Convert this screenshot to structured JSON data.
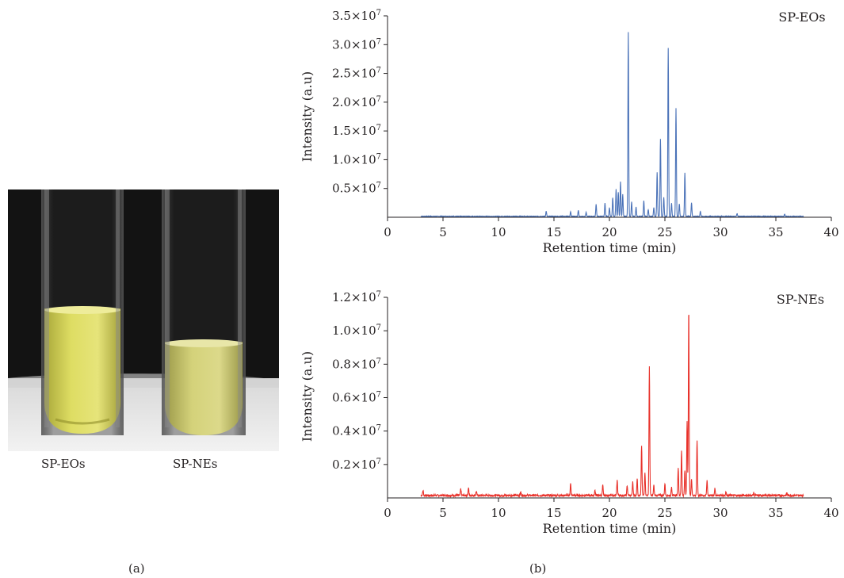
{
  "panel_a": {
    "tag": "(a)",
    "tube_labels": [
      "SP-EOs",
      "SP-NEs"
    ],
    "liquid_color": "#d6d65a",
    "background_color": "#141414"
  },
  "panel_b": {
    "tag": "(b)"
  },
  "chart_data": [
    {
      "type": "line",
      "series_label": "SP-EOs",
      "color": "#4a72b8",
      "xlabel": "Retention time (min)",
      "ylabel": "Intensity (a.u)",
      "xlim": [
        0,
        40
      ],
      "ylim": [
        0,
        35000000
      ],
      "xticks": [
        0,
        5,
        10,
        15,
        20,
        25,
        30,
        35,
        40
      ],
      "ytick_labels": [
        {
          "value": 5000000,
          "mant": "0.5×10",
          "exp": "7"
        },
        {
          "value": 10000000,
          "mant": "1.0×10",
          "exp": "7"
        },
        {
          "value": 15000000,
          "mant": "1.5×10",
          "exp": "7"
        },
        {
          "value": 20000000,
          "mant": "2.0×10",
          "exp": "7"
        },
        {
          "value": 25000000,
          "mant": "2.5×10",
          "exp": "7"
        },
        {
          "value": 30000000,
          "mant": "3.0×10",
          "exp": "7"
        },
        {
          "value": 35000000,
          "mant": "3.5×10",
          "exp": "7"
        }
      ],
      "x_range": [
        3,
        37.5
      ],
      "baseline": 150000,
      "peaks": [
        [
          14.3,
          900000
        ],
        [
          16.5,
          800000
        ],
        [
          17.2,
          1100000
        ],
        [
          17.9,
          700000
        ],
        [
          18.8,
          2100000
        ],
        [
          19.6,
          2300000
        ],
        [
          20.0,
          1500000
        ],
        [
          20.3,
          3300000
        ],
        [
          20.6,
          4700000
        ],
        [
          20.8,
          4200000
        ],
        [
          21.0,
          6000000
        ],
        [
          21.2,
          3800000
        ],
        [
          21.7,
          32000000
        ],
        [
          22.0,
          2500000
        ],
        [
          22.4,
          1600000
        ],
        [
          23.1,
          2700000
        ],
        [
          23.5,
          1200000
        ],
        [
          24.0,
          1500000
        ],
        [
          24.3,
          7700000
        ],
        [
          24.6,
          13500000
        ],
        [
          24.9,
          3300000
        ],
        [
          25.3,
          29300000
        ],
        [
          25.6,
          2300000
        ],
        [
          26.0,
          18800000
        ],
        [
          26.3,
          2200000
        ],
        [
          26.8,
          7600000
        ],
        [
          27.4,
          2400000
        ],
        [
          28.2,
          900000
        ],
        [
          31.5,
          500000
        ],
        [
          35.8,
          400000
        ]
      ]
    },
    {
      "type": "line",
      "series_label": "SP-NEs",
      "color": "#e8312a",
      "xlabel": "Retention time (min)",
      "ylabel": "Intensity (a.u)",
      "xlim": [
        0,
        40
      ],
      "ylim": [
        0,
        12000000
      ],
      "xticks": [
        0,
        5,
        10,
        15,
        20,
        25,
        30,
        35,
        40
      ],
      "ytick_labels": [
        {
          "value": 2000000,
          "mant": "0.2×10",
          "exp": "7"
        },
        {
          "value": 4000000,
          "mant": "0.4×10",
          "exp": "7"
        },
        {
          "value": 6000000,
          "mant": "0.6×10",
          "exp": "7"
        },
        {
          "value": 8000000,
          "mant": "0.8×10",
          "exp": "7"
        },
        {
          "value": 10000000,
          "mant": "1.0×10",
          "exp": "7"
        },
        {
          "value": 12000000,
          "mant": "1.2×10",
          "exp": "7"
        }
      ],
      "x_range": [
        3,
        37.5
      ],
      "baseline": 150000,
      "peaks": [
        [
          3.2,
          300000
        ],
        [
          6.6,
          400000
        ],
        [
          7.3,
          450000
        ],
        [
          8.0,
          250000
        ],
        [
          12.0,
          200000
        ],
        [
          16.5,
          700000
        ],
        [
          18.7,
          300000
        ],
        [
          19.4,
          600000
        ],
        [
          20.7,
          900000
        ],
        [
          21.6,
          600000
        ],
        [
          22.1,
          800000
        ],
        [
          22.5,
          1000000
        ],
        [
          22.9,
          3000000
        ],
        [
          23.2,
          1400000
        ],
        [
          23.6,
          7700000
        ],
        [
          24.0,
          600000
        ],
        [
          25.0,
          700000
        ],
        [
          25.6,
          500000
        ],
        [
          26.2,
          1700000
        ],
        [
          26.5,
          2700000
        ],
        [
          26.8,
          1500000
        ],
        [
          27.0,
          4400000
        ],
        [
          27.15,
          11200000
        ],
        [
          27.4,
          1000000
        ],
        [
          27.9,
          3300000
        ],
        [
          28.8,
          900000
        ],
        [
          29.5,
          400000
        ],
        [
          30.5,
          200000
        ],
        [
          33.0,
          150000
        ],
        [
          36.0,
          150000
        ]
      ]
    }
  ]
}
